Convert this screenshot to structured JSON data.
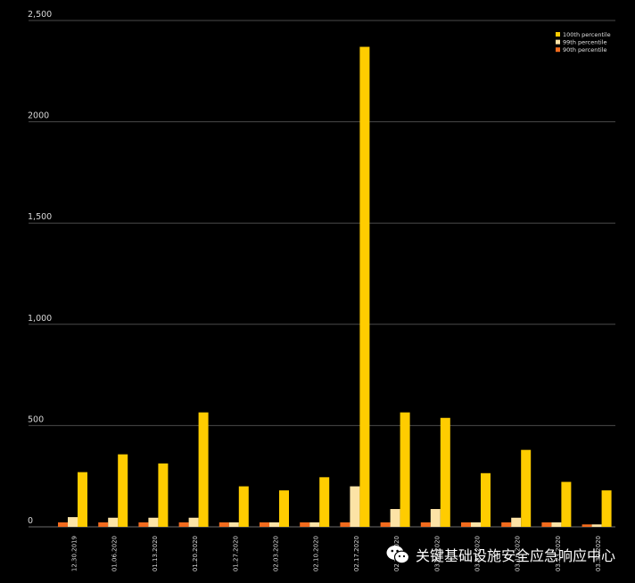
{
  "chart_data": {
    "type": "bar",
    "categories": [
      "12.30.2019",
      "01.06.2020",
      "01.13.2020",
      "01.20.2020",
      "01.27.2020",
      "02.03.2020",
      "02.10.2020",
      "02.17.2020",
      "02.24.2020",
      "03.02.2020",
      "03.09.2020",
      "03.16.2020",
      "03.23.2020",
      "03.30.2020"
    ],
    "series": [
      {
        "name": "90th percentile",
        "color": "#F26B1D",
        "values": [
          22,
          22,
          22,
          22,
          22,
          22,
          22,
          22,
          22,
          22,
          22,
          22,
          22,
          12
        ]
      },
      {
        "name": "99th percentile",
        "color": "#FCE3A6",
        "values": [
          48,
          45,
          45,
          45,
          22,
          22,
          22,
          200,
          88,
          88,
          22,
          45,
          22,
          12
        ]
      },
      {
        "name": "100th percentile",
        "color": "#FFCC00",
        "values": [
          270,
          358,
          313,
          565,
          200,
          180,
          245,
          2370,
          565,
          538,
          265,
          380,
          222,
          180
        ]
      }
    ],
    "yticks": [
      "0",
      "500",
      "1,000",
      "1,500",
      "2000",
      "2,500"
    ],
    "ytick_values": [
      0,
      500,
      1000,
      1500,
      2000,
      2500
    ],
    "ylim": [
      0,
      2500
    ],
    "legend_order": [
      "100th percentile",
      "99th percentile",
      "90th percentile"
    ],
    "legend_position": "top-right",
    "grid": true
  },
  "watermark": {
    "text": "关键基础设施安全应急响应中心",
    "icon": "wechat-icon"
  }
}
